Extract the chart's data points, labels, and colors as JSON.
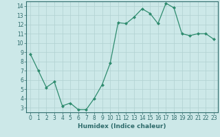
{
  "x": [
    0,
    1,
    2,
    3,
    4,
    5,
    6,
    7,
    8,
    9,
    10,
    11,
    12,
    13,
    14,
    15,
    16,
    17,
    18,
    19,
    20,
    21,
    22,
    23
  ],
  "y": [
    8.8,
    7.0,
    5.2,
    5.8,
    3.2,
    3.5,
    2.8,
    2.8,
    4.0,
    5.5,
    7.8,
    12.2,
    12.1,
    12.8,
    13.7,
    13.2,
    12.1,
    14.3,
    13.8,
    11.0,
    10.8,
    11.0,
    11.0,
    10.4
  ],
  "line_color": "#2e8b6e",
  "marker": "D",
  "markersize": 2.0,
  "linewidth": 0.9,
  "xlabel": "Humidex (Indice chaleur)",
  "xlim": [
    -0.5,
    23.5
  ],
  "ylim": [
    2.5,
    14.5
  ],
  "yticks": [
    3,
    4,
    5,
    6,
    7,
    8,
    9,
    10,
    11,
    12,
    13,
    14
  ],
  "xticks": [
    0,
    1,
    2,
    3,
    4,
    5,
    6,
    7,
    8,
    9,
    10,
    11,
    12,
    13,
    14,
    15,
    16,
    17,
    18,
    19,
    20,
    21,
    22,
    23
  ],
  "bg_color": "#cce8e8",
  "grid_color": "#b0d0d0",
  "tick_fontsize": 5.5,
  "xlabel_fontsize": 6.5,
  "axis_color": "#2e6b6b"
}
